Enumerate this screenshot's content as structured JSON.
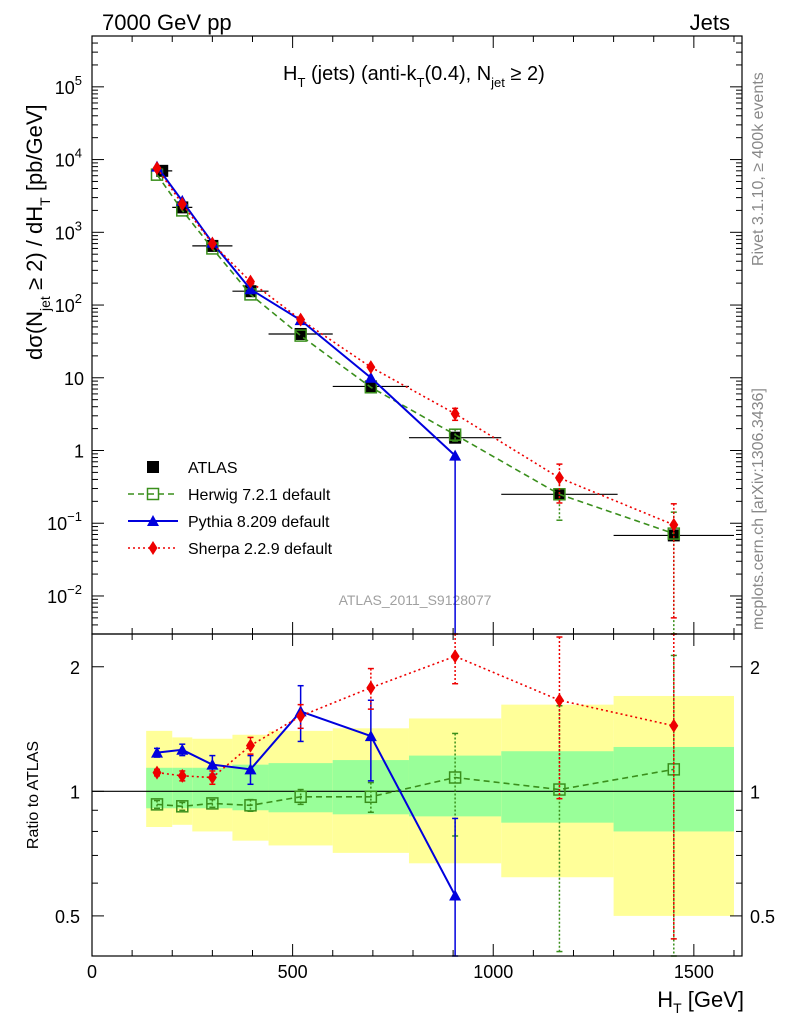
{
  "header": {
    "left": "7000 GeV pp",
    "right": "Jets"
  },
  "side_labels": {
    "rivet": "Rivet 3.1.10, ≥ 400k events",
    "mcplots": "mcplots.cern.ch [arXiv:1306.3436]"
  },
  "colors": {
    "herwig": "#3a8f1c",
    "pythia": "#0000dd",
    "sherpa": "#ee0000",
    "band_inner": "#99ff99",
    "band_outer": "#ffff99",
    "watermark": "#a0a0a0"
  },
  "chart_data": [
    {
      "type": "scatter",
      "scale": "log",
      "title_parts": {
        "main": "H",
        "sub1": "T",
        "mid1": " (jets) (anti-k",
        "sub2": "T",
        "mid2": "(0.4), N",
        "sub3": "jet",
        "end": " ≥ 2)"
      },
      "ylabel_parts": {
        "a": "dσ(N",
        "sub1": "jet",
        "b": " ≥ 2) / dH",
        "sub2": "T",
        "c": " [pb/GeV]"
      },
      "watermark": "ATLAS_2011_S9128077",
      "xlim": [
        0,
        1620
      ],
      "ylim": [
        0.003,
        500000
      ],
      "ytick_labels": [
        {
          "value": 100000,
          "base": "10",
          "exp": "5"
        },
        {
          "value": 10000,
          "base": "10",
          "exp": "4"
        },
        {
          "value": 1000,
          "base": "10",
          "exp": "3"
        },
        {
          "value": 100,
          "base": "10",
          "exp": "2"
        },
        {
          "value": 10,
          "base": "10",
          "exp": ""
        },
        {
          "value": 1,
          "base": "1",
          "exp": ""
        },
        {
          "value": 0.1,
          "base": "10",
          "exp": "−1"
        },
        {
          "value": 0.01,
          "base": "10",
          "exp": "−2"
        }
      ],
      "legend": [
        {
          "key": "atlas",
          "label": "ATLAS"
        },
        {
          "key": "herwig",
          "label": "Herwig 7.2.1 default"
        },
        {
          "key": "pythia",
          "label": "Pythia 8.209 default"
        },
        {
          "key": "sherpa",
          "label": "Sherpa 2.2.9 default"
        }
      ],
      "series": [
        {
          "key": "atlas",
          "name": "ATLAS",
          "x": [
            175,
            225,
            300,
            395,
            520,
            695,
            905,
            1165,
            1450
          ],
          "xerr": [
            25,
            25,
            50,
            45,
            80,
            95,
            115,
            145,
            150
          ],
          "y": [
            7000,
            2200,
            650,
            155,
            40,
            7.6,
            1.5,
            0.25,
            0.068
          ]
        },
        {
          "key": "herwig",
          "name": "Herwig 7.2.1 default",
          "x": [
            162,
            225,
            300,
            395,
            520,
            695,
            905,
            1165,
            1450
          ],
          "y": [
            6200,
            2000,
            600,
            140,
            38,
            7.4,
            1.65,
            0.25,
            0.072
          ],
          "yerr": [
            0,
            0,
            0,
            0,
            0,
            0,
            0.3,
            0.14,
            0.07
          ]
        },
        {
          "key": "pythia",
          "name": "Pythia 8.209 default",
          "x": [
            162,
            225,
            300,
            395,
            520,
            695,
            905
          ],
          "y": [
            8000,
            2700,
            720,
            165,
            62,
            10,
            0.85
          ],
          "yerr_up": [
            0,
            0,
            0,
            0,
            0,
            0,
            0
          ],
          "yerr_down": [
            0,
            0,
            0,
            0,
            0,
            0,
            0.85
          ]
        },
        {
          "key": "sherpa",
          "name": "Sherpa 2.2.9 default",
          "x": [
            162,
            225,
            300,
            395,
            520,
            695,
            905,
            1165,
            1450
          ],
          "y": [
            7600,
            2450,
            700,
            210,
            63,
            14,
            3.2,
            0.42,
            0.095
          ],
          "yerr": [
            0,
            0,
            0,
            0,
            0,
            0,
            0.6,
            0.23,
            0.09
          ]
        }
      ]
    },
    {
      "type": "scatter",
      "scale": "log",
      "ylabel": "Ratio to ATLAS",
      "xlabel_parts": {
        "main": "H",
        "sub": "T",
        "rest": " [GeV]"
      },
      "xlim": [
        0,
        1620
      ],
      "ylim": [
        0.4,
        2.4
      ],
      "reference": 1,
      "xtick_labels": [
        {
          "value": 0,
          "label": "0"
        },
        {
          "value": 500,
          "label": "500"
        },
        {
          "value": 1000,
          "label": "1000"
        },
        {
          "value": 1500,
          "label": "1500"
        }
      ],
      "ytick_labels": [
        {
          "value": 2,
          "label": "2"
        },
        {
          "value": 1,
          "label": "1"
        },
        {
          "value": 0.5,
          "label": "0.5"
        }
      ],
      "bands": {
        "edges": [
          135,
          200,
          250,
          350,
          440,
          600,
          790,
          1020,
          1300,
          1600
        ],
        "inner_lo": [
          0.91,
          0.91,
          0.91,
          0.9,
          0.89,
          0.88,
          0.87,
          0.84,
          0.8
        ],
        "inner_hi": [
          1.14,
          1.14,
          1.14,
          1.16,
          1.17,
          1.19,
          1.22,
          1.25,
          1.28
        ],
        "outer_lo": [
          0.82,
          0.83,
          0.8,
          0.76,
          0.74,
          0.71,
          0.67,
          0.62,
          0.5
        ],
        "outer_hi": [
          1.4,
          1.35,
          1.34,
          1.37,
          1.4,
          1.42,
          1.5,
          1.62,
          1.7
        ]
      },
      "series": [
        {
          "key": "herwig",
          "name": "Herwig 7.2.1 default",
          "x": [
            162,
            225,
            300,
            395,
            520,
            695,
            905,
            1165,
            1450
          ],
          "y": [
            0.93,
            0.92,
            0.935,
            0.925,
            0.97,
            0.97,
            1.08,
            1.01,
            1.13
          ],
          "yerr": [
            0.02,
            0.02,
            0.02,
            0.03,
            0.04,
            0.08,
            0.3,
            0.6,
            1.0
          ]
        },
        {
          "key": "pythia",
          "name": "Pythia 8.209 default",
          "x": [
            162,
            225,
            300,
            395,
            520,
            695,
            905
          ],
          "y": [
            1.24,
            1.26,
            1.16,
            1.13,
            1.56,
            1.36,
            0.56
          ],
          "yerr": [
            0.03,
            0.04,
            0.06,
            0.09,
            0.24,
            0.3,
            0.3
          ]
        },
        {
          "key": "sherpa",
          "name": "Sherpa 2.2.9 default",
          "x": [
            162,
            225,
            300,
            395,
            520,
            695,
            905,
            1165,
            1450
          ],
          "y": [
            1.11,
            1.09,
            1.08,
            1.29,
            1.52,
            1.78,
            2.12,
            1.66,
            1.44
          ],
          "yerr": [
            0.02,
            0.03,
            0.04,
            0.06,
            0.1,
            0.2,
            0.3,
            0.7,
            1.0
          ]
        }
      ]
    }
  ]
}
